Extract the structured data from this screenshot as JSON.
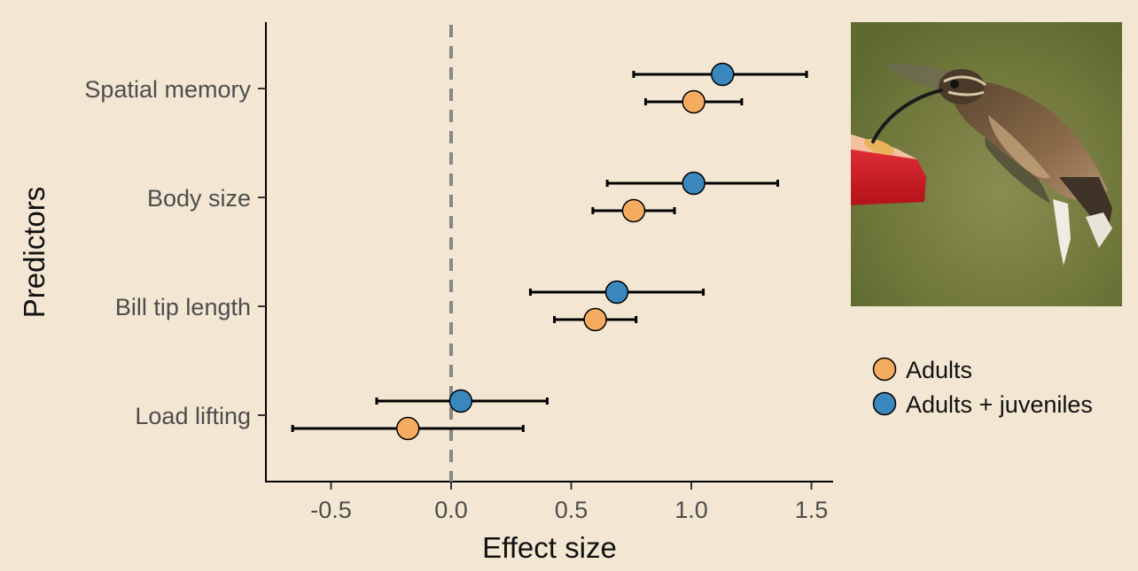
{
  "chart_data": {
    "type": "scatter",
    "subtype": "forest-plot",
    "xlabel": "Effect size",
    "ylabel": "Predictors",
    "xlim": [
      -0.8,
      1.6
    ],
    "xticks": [
      -0.5,
      0.0,
      0.5,
      1.0,
      1.5
    ],
    "xtick_labels": [
      "-0.5",
      "0.0",
      "0.5",
      "1.0",
      "1.5"
    ],
    "reference_line": 0.0,
    "categories": [
      "Spatial memory",
      "Body size",
      "Bill tip length",
      "Load lifting"
    ],
    "legend_position": "right",
    "series": [
      {
        "name": "Adults + juveniles",
        "color": "#3a87bd",
        "estimates": [
          1.13,
          1.01,
          0.69,
          0.04
        ],
        "lower": [
          0.76,
          0.65,
          0.33,
          -0.31
        ],
        "upper": [
          1.48,
          1.36,
          1.05,
          0.4
        ]
      },
      {
        "name": "Adults",
        "color": "#f5ac60",
        "estimates": [
          1.01,
          0.76,
          0.6,
          -0.18
        ],
        "lower": [
          0.81,
          0.59,
          0.43,
          -0.66
        ],
        "upper": [
          1.21,
          0.93,
          0.77,
          0.3
        ]
      }
    ],
    "grid": false
  },
  "illustration": {
    "subject": "hummingbird at feeder",
    "colors": {
      "background_green": "#707a3a",
      "feeder_red": "#d01a22",
      "bird_brown": "#6b5138"
    }
  }
}
